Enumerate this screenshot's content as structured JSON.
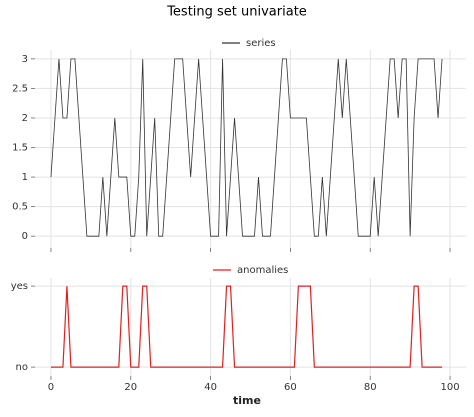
{
  "chart_data": [
    {
      "type": "line",
      "title": "Testing set univariate",
      "x": [
        0,
        1,
        2,
        3,
        4,
        5,
        6,
        7,
        8,
        9,
        10,
        11,
        12,
        13,
        14,
        15,
        16,
        17,
        18,
        19,
        20,
        21,
        22,
        23,
        24,
        25,
        26,
        27,
        28,
        29,
        30,
        31,
        32,
        33,
        34,
        35,
        36,
        37,
        38,
        39,
        40,
        41,
        42,
        43,
        44,
        45,
        46,
        47,
        48,
        49,
        50,
        51,
        52,
        53,
        54,
        55,
        56,
        57,
        58,
        59,
        60,
        61,
        62,
        63,
        64,
        65,
        66,
        67,
        68,
        69,
        70,
        71,
        72,
        73,
        74,
        75,
        76,
        77,
        78,
        79,
        80,
        81,
        82,
        83,
        84,
        85,
        86,
        87,
        88,
        89,
        90,
        91,
        92,
        93,
        94,
        95,
        96,
        97,
        98
      ],
      "series": [
        {
          "name": "series",
          "color": "#333333",
          "values": [
            1,
            2,
            3,
            2,
            2,
            3,
            3,
            2,
            1,
            0,
            0,
            0,
            0,
            1,
            0,
            1,
            2,
            1,
            1,
            1,
            0,
            0,
            1,
            3,
            0,
            1,
            2,
            0,
            0,
            1,
            2,
            3,
            3,
            3,
            2,
            1,
            2,
            3,
            2,
            1,
            0,
            0,
            0,
            3,
            0,
            1,
            2,
            1,
            0,
            0,
            0,
            0,
            1,
            0,
            0,
            0,
            1,
            2,
            3,
            3,
            2,
            2,
            2,
            2,
            2,
            1,
            0,
            0,
            1,
            0,
            1,
            2,
            3,
            2,
            3,
            2,
            1,
            0,
            0,
            0,
            0,
            1,
            0,
            1,
            2,
            3,
            3,
            2,
            3,
            3,
            0,
            2,
            3,
            3,
            3,
            3,
            3,
            2,
            3
          ]
        }
      ],
      "xlim": [
        -4,
        104
      ],
      "xticks": [
        0,
        20,
        40,
        60,
        80,
        100
      ],
      "ylim": [
        -0.2,
        3.15
      ],
      "yticks": [
        0.0,
        0.5,
        1.0,
        1.5,
        2.0,
        2.5,
        3.0
      ],
      "grid": true
    },
    {
      "type": "line",
      "xlabel": "time",
      "x": [
        0,
        1,
        2,
        3,
        4,
        5,
        6,
        7,
        8,
        9,
        10,
        11,
        12,
        13,
        14,
        15,
        16,
        17,
        18,
        19,
        20,
        21,
        22,
        23,
        24,
        25,
        26,
        27,
        28,
        29,
        30,
        31,
        32,
        33,
        34,
        35,
        36,
        37,
        38,
        39,
        40,
        41,
        42,
        43,
        44,
        45,
        46,
        47,
        48,
        49,
        50,
        51,
        52,
        53,
        54,
        55,
        56,
        57,
        58,
        59,
        60,
        61,
        62,
        63,
        64,
        65,
        66,
        67,
        68,
        69,
        70,
        71,
        72,
        73,
        74,
        75,
        76,
        77,
        78,
        79,
        80,
        81,
        82,
        83,
        84,
        85,
        86,
        87,
        88,
        89,
        90,
        91,
        92,
        93,
        94,
        95,
        96,
        97,
        98
      ],
      "series": [
        {
          "name": "anomalies",
          "color": "#e02020",
          "values": [
            0,
            0,
            0,
            0,
            1,
            0,
            0,
            0,
            0,
            0,
            0,
            0,
            0,
            0,
            0,
            0,
            0,
            0,
            1,
            1,
            0,
            0,
            0,
            1,
            1,
            0,
            0,
            0,
            0,
            0,
            0,
            0,
            0,
            0,
            0,
            0,
            0,
            0,
            0,
            0,
            0,
            0,
            0,
            0,
            1,
            1,
            0,
            0,
            0,
            0,
            0,
            0,
            0,
            0,
            0,
            0,
            0,
            0,
            0,
            0,
            0,
            0,
            1,
            1,
            1,
            1,
            0,
            0,
            0,
            0,
            0,
            0,
            0,
            0,
            0,
            0,
            0,
            0,
            0,
            0,
            0,
            0,
            0,
            0,
            0,
            0,
            0,
            0,
            0,
            0,
            0,
            1,
            1,
            0,
            0,
            0,
            0,
            0,
            0
          ]
        }
      ],
      "xlim": [
        -4,
        104
      ],
      "xticks": [
        0,
        20,
        40,
        60,
        80,
        100
      ],
      "ylim": [
        -0.11,
        1.1
      ],
      "yticks": [
        {
          "value": 0,
          "label": "no"
        },
        {
          "value": 1,
          "label": "yes"
        }
      ],
      "grid": true
    }
  ]
}
